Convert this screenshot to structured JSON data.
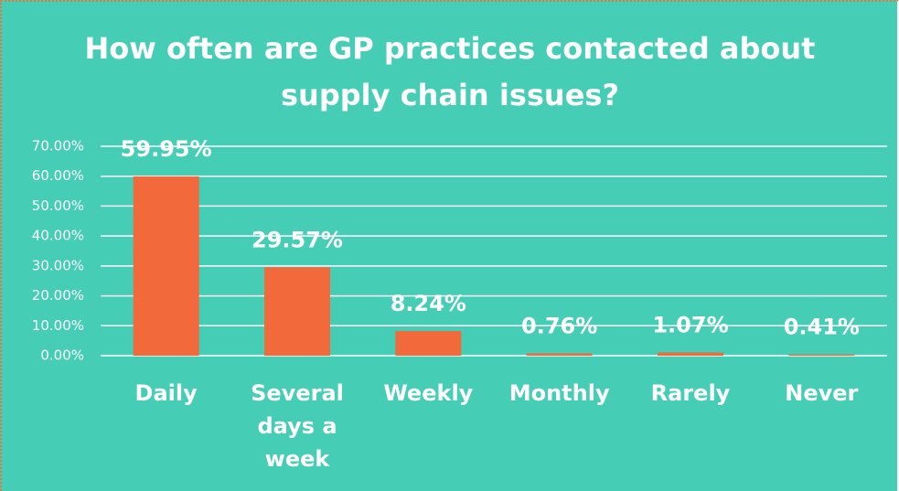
{
  "chart_data": {
    "type": "bar",
    "title": "How often are GP practices contacted about supply chain issues?",
    "categories": [
      "Daily",
      "Several days a week",
      "Weekly",
      "Monthly",
      "Rarely",
      "Never"
    ],
    "values": [
      59.95,
      29.57,
      8.24,
      0.76,
      1.07,
      0.41
    ],
    "value_labels": [
      "59.95%",
      "29.57%",
      "8.24%",
      "0.76%",
      "1.07%",
      "0.41%"
    ],
    "color": "#f26a3c",
    "ylim": [
      0,
      70
    ],
    "yticks": [
      {
        "value": 0,
        "label": "0.00%"
      },
      {
        "value": 10,
        "label": "10.00%"
      },
      {
        "value": 20,
        "label": "20.00%"
      },
      {
        "value": 30,
        "label": "30.00%"
      },
      {
        "value": 40,
        "label": "40.00%"
      },
      {
        "value": 50,
        "label": "50.00%"
      },
      {
        "value": 60,
        "label": "60.00%"
      },
      {
        "value": 70,
        "label": "70.00%"
      }
    ],
    "grid": true
  }
}
